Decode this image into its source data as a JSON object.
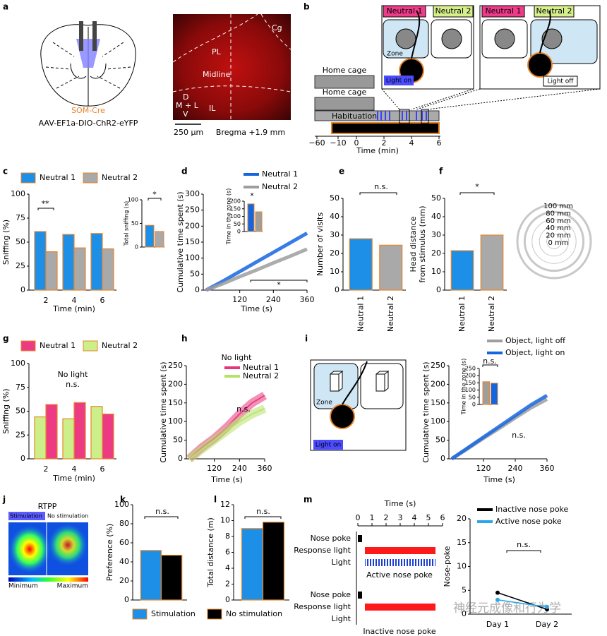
{
  "figure": {
    "panel_letters": [
      "a",
      "b",
      "c",
      "d",
      "e",
      "f",
      "g",
      "h",
      "i",
      "j",
      "k",
      "l",
      "m"
    ],
    "a": {
      "cre_line": "SOM-Cre",
      "virus": "AAV-EF1a-DIO-ChR2-eYFP",
      "regions": [
        "Cg",
        "PL",
        "Midline",
        "D",
        "M + L",
        "V",
        "IL"
      ],
      "scale_bar": "250 μm",
      "bregma": "Bregma +1.9 mm"
    },
    "b": {
      "stimuli": [
        "Neutral 1",
        "Neutral 2"
      ],
      "zone": "Zone",
      "light_on": "Light on",
      "light_off": "Light off",
      "stages": [
        "Home cage",
        "Home cage",
        "Habituation"
      ],
      "xlabel": "Time (min)",
      "xticks": [
        {
          "value": -60,
          "label": "−60"
        },
        {
          "value": -10,
          "label": "−10"
        },
        0,
        2,
        4,
        6
      ]
    },
    "i_diagram": {
      "zone": "Zone",
      "light_on": "Light on"
    },
    "j": {
      "title": "RTPP",
      "stimulation": "Stimulation",
      "no_stimulation": "No stimulation",
      "min": "Minimum",
      "max": "Maximum"
    },
    "watermark": "神经元成像和行为学"
  },
  "chart_data": [
    {
      "type": "bar",
      "categories": [
        "2",
        "4",
        "6"
      ],
      "xlabel": "Time (min)",
      "ylabel": "Sniffing (%)",
      "ylim": [
        0,
        100
      ],
      "yticks": [
        0,
        25,
        50,
        75,
        100
      ],
      "edgecolor": "#e8862a",
      "series": [
        {
          "name": "Neutral 1",
          "color": "#1e8fe6",
          "values": [
            61,
            58,
            59
          ]
        },
        {
          "name": "Neutral 2",
          "color": "#a9a9a9",
          "values": [
            40,
            44,
            43
          ]
        }
      ],
      "annotations": [
        "**"
      ],
      "inset": {
        "ylabel": "Total sniffing (s)",
        "ylim": [
          0,
          100
        ],
        "yticks": [
          0,
          50,
          100
        ],
        "values": [
          46,
          33
        ],
        "annotations": [
          "*"
        ]
      }
    },
    {
      "type": "line",
      "x": [
        0,
        60,
        120,
        180,
        240,
        300,
        360
      ],
      "xlim": [
        0,
        360
      ],
      "xticks": [
        120,
        240,
        360
      ],
      "xlabel": "Time (s)",
      "ylabel": "Cumulative time spent (s)",
      "ylim": [
        0,
        300
      ],
      "yticks": [
        0,
        50,
        100,
        150,
        200,
        250,
        300
      ],
      "edgecolor": "#e8862a",
      "series": [
        {
          "name": "Neutral 1",
          "color": "#1565e0",
          "values": [
            0,
            28,
            58,
            88,
            118,
            148,
            178
          ]
        },
        {
          "name": "Neutral 2",
          "color": "#9e9e9e",
          "values": [
            0,
            20,
            42,
            63,
            85,
            106,
            128
          ]
        }
      ],
      "annotations": [
        "*"
      ],
      "inset": {
        "ylabel": "Time in the zone (s)",
        "ylim": [
          0,
          200
        ],
        "yticks": [
          0,
          50,
          100,
          150,
          200
        ],
        "values": [
          182,
          130
        ],
        "annotations": [
          "*"
        ]
      }
    },
    {
      "type": "bar",
      "categories": [
        "Neutral 1",
        "Neutral 2"
      ],
      "ylabel": "Number of visits",
      "ylim": [
        0,
        50
      ],
      "yticks": [
        0,
        10,
        20,
        30,
        40,
        50
      ],
      "edgecolor": "#e8862a",
      "colors": [
        "#1e8fe6",
        "#a9a9a9"
      ],
      "values": [
        28,
        24.5
      ],
      "annotations": [
        "n.s."
      ]
    },
    {
      "type": "bar",
      "categories": [
        "Neutral 1",
        "Neutral 2"
      ],
      "ylabel": [
        "Head distance",
        "from stimulus (mm)"
      ],
      "ylim": [
        0,
        50
      ],
      "yticks": [
        0,
        10,
        20,
        30,
        40,
        50
      ],
      "edgecolor": "#e8862a",
      "colors": [
        "#1e8fe6",
        "#a9a9a9"
      ],
      "values": [
        21.5,
        30
      ],
      "annotations": [
        "*"
      ]
    },
    {
      "type": "polar",
      "rlim": [
        0,
        100
      ],
      "rticks": [
        {
          "value": 100,
          "label": "100 mm"
        },
        {
          "value": 80,
          "label": "80 mm"
        },
        {
          "value": 60,
          "label": "60 mm"
        },
        {
          "value": 40,
          "label": "40 mm"
        },
        {
          "value": 20,
          "label": "20 mm"
        },
        {
          "value": 0,
          "label": "0 mm"
        }
      ]
    },
    {
      "type": "bar",
      "categories": [
        "2",
        "4",
        "6"
      ],
      "xlabel": "Time (min)",
      "ylabel": "Sniffing (%)",
      "subtitle": "No light",
      "ylim": [
        0,
        100
      ],
      "yticks": [
        0,
        25,
        50,
        75,
        100
      ],
      "edgecolor": "#e8862a",
      "series": [
        {
          "name": "Neutral 1",
          "color": "#ec3b82",
          "values": [
            57,
            59,
            47
          ]
        },
        {
          "name": "Neutral 2",
          "color": "#cdef8a",
          "values": [
            44,
            42,
            55
          ]
        }
      ],
      "annotations": [
        "n.s."
      ]
    },
    {
      "type": "line",
      "title": "No light",
      "x": [
        0,
        60,
        120,
        180,
        240,
        300,
        360
      ],
      "xlim": [
        0,
        360
      ],
      "xticks": [
        120,
        240,
        360
      ],
      "xlabel": "Time (s)",
      "ylabel": "Cumulative time spent (s)",
      "ylim": [
        0,
        250
      ],
      "yticks": [
        0,
        50,
        100,
        150,
        200,
        250
      ],
      "series": [
        {
          "name": "Neutral 1",
          "color": "#e8357a",
          "values": [
            0,
            30,
            55,
            85,
            120,
            150,
            170
          ]
        },
        {
          "name": "Neutral 2",
          "color": "#b7e26a",
          "values": [
            0,
            25,
            50,
            75,
            100,
            120,
            135
          ]
        }
      ],
      "annotations": [
        "n.s."
      ]
    },
    {
      "type": "line",
      "x": [
        0,
        60,
        120,
        180,
        240,
        300,
        360
      ],
      "xlim": [
        0,
        360
      ],
      "xticks": [
        120,
        240,
        360
      ],
      "xlabel": "Time (s)",
      "ylabel": "Cumulative time spent (s)",
      "ylim": [
        0,
        250
      ],
      "yticks": [
        0,
        50,
        100,
        150,
        200,
        250
      ],
      "edgecolor": "#e8862a",
      "series": [
        {
          "name": "Object, light off",
          "color": "#9e9e9e",
          "values": [
            0,
            27,
            55,
            82,
            110,
            137,
            160
          ]
        },
        {
          "name": "Object, light on",
          "color": "#1565e0",
          "values": [
            0,
            29,
            58,
            87,
            116,
            145,
            170
          ]
        }
      ],
      "annotations": [
        "n.s."
      ],
      "inset": {
        "ylabel": "Time in the zone (s)",
        "ylim": [
          0,
          250
        ],
        "yticks": [
          0,
          50,
          100,
          150,
          200,
          250
        ],
        "values": [
          158,
          148
        ],
        "annotations": [
          "n.s."
        ]
      }
    },
    {
      "type": "bar",
      "categories": [
        null
      ],
      "ylabel": "Preference (%)",
      "ylim": [
        0,
        100
      ],
      "yticks": [
        0,
        20,
        40,
        60,
        80,
        100
      ],
      "edgecolor": "#e8862a",
      "series": [
        {
          "name": "Stimulation",
          "color": "#1e8fe6",
          "values": [
            52
          ]
        },
        {
          "name": "No stimulation",
          "color": "#000000",
          "values": [
            47
          ]
        }
      ],
      "annotations": [
        "n.s."
      ]
    },
    {
      "type": "bar",
      "categories": [
        null
      ],
      "ylabel": "Total distance (m)",
      "ylim": [
        0,
        12
      ],
      "yticks": [
        0,
        2,
        4,
        6,
        8,
        10,
        12
      ],
      "edgecolor": "#e8862a",
      "series": [
        {
          "color": "#1e8fe6",
          "values": [
            9
          ]
        },
        {
          "color": "#000000",
          "values": [
            9.8
          ]
        }
      ],
      "annotations": [
        "n.s."
      ]
    },
    {
      "type": "timeline",
      "xlabel": "Time (s)",
      "xlim": [
        0,
        6
      ],
      "xticks": [
        0,
        1,
        2,
        3,
        4,
        5,
        6
      ],
      "panels": [
        {
          "title": "Active nose poke",
          "rows": [
            {
              "label": "Nose poke",
              "start": 0,
              "end": 0.3,
              "color": "#000000"
            },
            {
              "label": "Response light",
              "start": 0.5,
              "end": 5.5,
              "color": "#ff1a1a"
            },
            {
              "label": "Light",
              "start": 0.5,
              "end": 5.5,
              "color": "#1a3fd6",
              "pattern": "stripes"
            }
          ]
        },
        {
          "title": "Inactive nose poke",
          "rows": [
            {
              "label": "Nose poke",
              "start": 0,
              "end": 0.3,
              "color": "#000000"
            },
            {
              "label": "Response light",
              "start": 0.5,
              "end": 5.5,
              "color": "#ff1a1a"
            },
            {
              "label": "Light"
            }
          ]
        }
      ]
    },
    {
      "type": "line",
      "categories": [
        "Day 1",
        "Day 2"
      ],
      "ylabel": "Nose-poke",
      "ylim": [
        0,
        20
      ],
      "yticks": [
        0,
        5,
        10,
        15,
        20
      ],
      "series": [
        {
          "name": "Inactive nose poke",
          "color": "#000000",
          "values": [
            4.5,
            1
          ]
        },
        {
          "name": "Active nose poke",
          "color": "#2aa7e8",
          "values": [
            3,
            1.5
          ]
        }
      ],
      "annotations": [
        "n.s."
      ]
    }
  ]
}
